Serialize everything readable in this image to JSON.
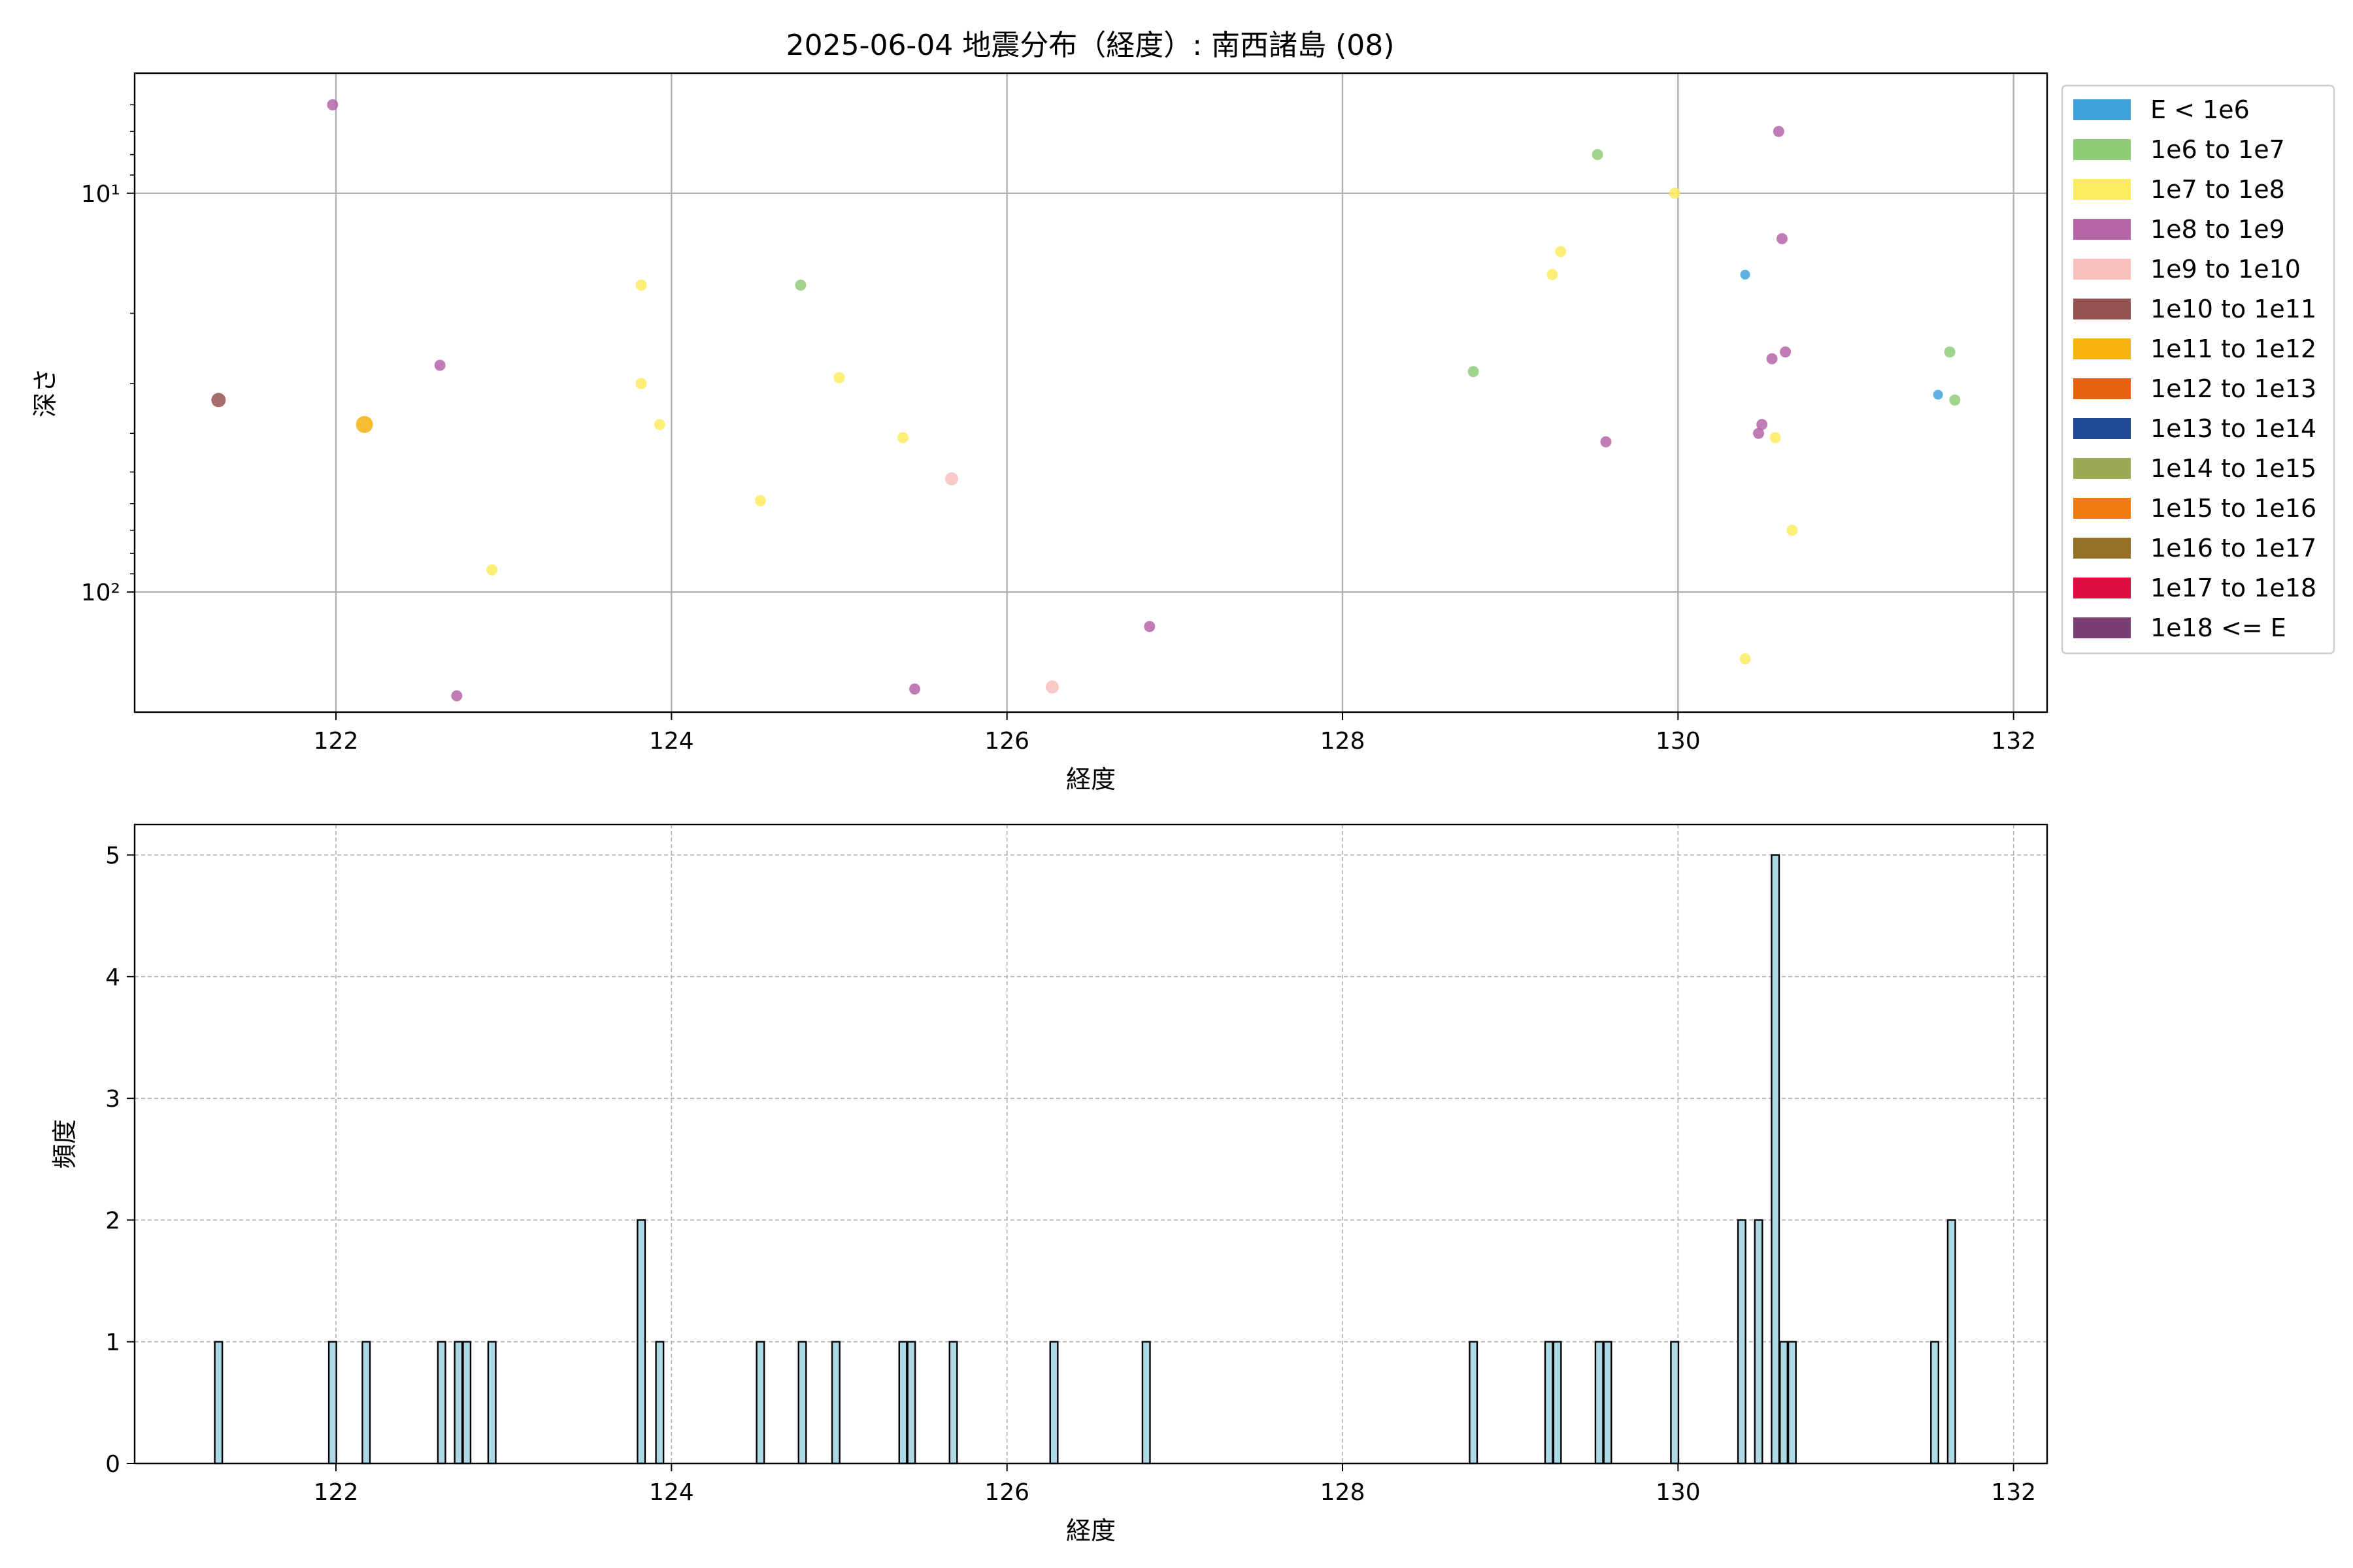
{
  "chart_data": [
    {
      "type": "scatter",
      "title": "2025-06-04 地震分布（経度）: 南西諸島 (08)",
      "xlabel": "経度",
      "ylabel": "深さ",
      "xlim": [
        120.8,
        132.2
      ],
      "ylim": [
        200,
        5
      ],
      "yscale": "log",
      "y_inverted": true,
      "xticks": [
        122,
        124,
        126,
        128,
        130,
        132
      ],
      "xtick_labels": [
        "122",
        "124",
        "126",
        "128",
        "130",
        "132"
      ],
      "yticks": [
        10,
        100
      ],
      "ytick_labels": [
        "10¹",
        "10²"
      ],
      "grid": true,
      "legend_position": "outside-right",
      "legend": [
        {
          "label": "E < 1e6",
          "color": "#41a3dc"
        },
        {
          "label": "1e6 to 1e7",
          "color": "#8fcc78"
        },
        {
          "label": "1e7 to 1e8",
          "color": "#fceb5e"
        },
        {
          "label": "1e8 to 1e9",
          "color": "#b565a7"
        },
        {
          "label": "1e9 to 1e10",
          "color": "#f7c0bc"
        },
        {
          "label": "1e10 to 1e11",
          "color": "#955251"
        },
        {
          "label": "1e11 to 1e12",
          "color": "#f6b20e"
        },
        {
          "label": "1e12 to 1e13",
          "color": "#e8610e"
        },
        {
          "label": "1e13 to 1e14",
          "color": "#1d4a96"
        },
        {
          "label": "1e14 to 1e15",
          "color": "#9bab54"
        },
        {
          "label": "1e15 to 1e16",
          "color": "#ef7b10"
        },
        {
          "label": "1e16 to 1e17",
          "color": "#957028"
        },
        {
          "label": "1e17 to 1e18",
          "color": "#dc0c40"
        },
        {
          "label": "1e18 <= E",
          "color": "#7a3e74"
        }
      ],
      "points": [
        {
          "x": 121.3,
          "y": 33,
          "cls": 5
        },
        {
          "x": 121.98,
          "y": 6,
          "cls": 3
        },
        {
          "x": 122.17,
          "y": 38,
          "cls": 6
        },
        {
          "x": 122.62,
          "y": 27,
          "cls": 3
        },
        {
          "x": 122.72,
          "y": 182,
          "cls": 3
        },
        {
          "x": 122.93,
          "y": 88,
          "cls": 2
        },
        {
          "x": 123.82,
          "y": 17,
          "cls": 2
        },
        {
          "x": 123.82,
          "y": 30,
          "cls": 2
        },
        {
          "x": 123.93,
          "y": 38,
          "cls": 2
        },
        {
          "x": 124.53,
          "y": 59,
          "cls": 2
        },
        {
          "x": 124.77,
          "y": 17,
          "cls": 1
        },
        {
          "x": 125.0,
          "y": 29,
          "cls": 2
        },
        {
          "x": 125.38,
          "y": 41,
          "cls": 2
        },
        {
          "x": 125.45,
          "y": 175,
          "cls": 3
        },
        {
          "x": 125.67,
          "y": 52,
          "cls": 4
        },
        {
          "x": 126.27,
          "y": 173,
          "cls": 4
        },
        {
          "x": 126.85,
          "y": 122,
          "cls": 3
        },
        {
          "x": 128.78,
          "y": 28,
          "cls": 1
        },
        {
          "x": 129.25,
          "y": 16,
          "cls": 2
        },
        {
          "x": 129.3,
          "y": 14,
          "cls": 2
        },
        {
          "x": 129.52,
          "y": 8,
          "cls": 1
        },
        {
          "x": 129.57,
          "y": 42,
          "cls": 3
        },
        {
          "x": 129.98,
          "y": 10,
          "cls": 2
        },
        {
          "x": 130.4,
          "y": 16,
          "cls": 0
        },
        {
          "x": 130.4,
          "y": 147,
          "cls": 2
        },
        {
          "x": 130.48,
          "y": 40,
          "cls": 3
        },
        {
          "x": 130.5,
          "y": 38,
          "cls": 3
        },
        {
          "x": 130.56,
          "y": 26,
          "cls": 3
        },
        {
          "x": 130.58,
          "y": 41,
          "cls": 2
        },
        {
          "x": 130.6,
          "y": 7,
          "cls": 3
        },
        {
          "x": 130.62,
          "y": 13,
          "cls": 3
        },
        {
          "x": 130.64,
          "y": 25,
          "cls": 3
        },
        {
          "x": 130.68,
          "y": 70,
          "cls": 2
        },
        {
          "x": 131.55,
          "y": 32,
          "cls": 0
        },
        {
          "x": 131.62,
          "y": 25,
          "cls": 1
        },
        {
          "x": 131.65,
          "y": 33,
          "cls": 1
        }
      ]
    },
    {
      "type": "bar",
      "title": "",
      "xlabel": "経度",
      "ylabel": "頻度",
      "xlim": [
        120.8,
        132.2
      ],
      "ylim": [
        0,
        5.25
      ],
      "xticks": [
        122,
        124,
        126,
        128,
        130,
        132
      ],
      "xtick_labels": [
        "122",
        "124",
        "126",
        "128",
        "130",
        "132"
      ],
      "yticks": [
        0,
        1,
        2,
        3,
        4,
        5
      ],
      "ytick_labels": [
        "0",
        "1",
        "2",
        "3",
        "4",
        "5"
      ],
      "grid": true,
      "bar_color": "#add8e6",
      "bin_width": 0.045,
      "bins": [
        {
          "x": 121.3,
          "count": 1
        },
        {
          "x": 121.98,
          "count": 1
        },
        {
          "x": 122.18,
          "count": 1
        },
        {
          "x": 122.63,
          "count": 1
        },
        {
          "x": 122.73,
          "count": 1
        },
        {
          "x": 122.78,
          "count": 1
        },
        {
          "x": 122.93,
          "count": 1
        },
        {
          "x": 123.82,
          "count": 2
        },
        {
          "x": 123.93,
          "count": 1
        },
        {
          "x": 124.53,
          "count": 1
        },
        {
          "x": 124.78,
          "count": 1
        },
        {
          "x": 124.98,
          "count": 1
        },
        {
          "x": 125.38,
          "count": 1
        },
        {
          "x": 125.43,
          "count": 1
        },
        {
          "x": 125.68,
          "count": 1
        },
        {
          "x": 126.28,
          "count": 1
        },
        {
          "x": 126.83,
          "count": 1
        },
        {
          "x": 128.78,
          "count": 1
        },
        {
          "x": 129.23,
          "count": 1
        },
        {
          "x": 129.28,
          "count": 1
        },
        {
          "x": 129.53,
          "count": 1
        },
        {
          "x": 129.58,
          "count": 1
        },
        {
          "x": 129.98,
          "count": 1
        },
        {
          "x": 130.38,
          "count": 2
        },
        {
          "x": 130.48,
          "count": 2
        },
        {
          "x": 130.58,
          "count": 5
        },
        {
          "x": 130.63,
          "count": 1
        },
        {
          "x": 130.68,
          "count": 1
        },
        {
          "x": 131.53,
          "count": 1
        },
        {
          "x": 131.63,
          "count": 2
        }
      ]
    }
  ]
}
